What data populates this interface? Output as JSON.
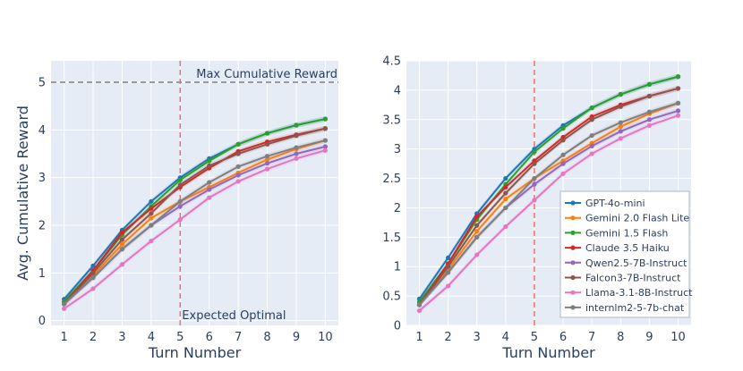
{
  "chart_data": [
    {
      "type": "line",
      "x": [
        1,
        2,
        3,
        4,
        5,
        6,
        7,
        8,
        9,
        10
      ],
      "xlabel": "Turn Number",
      "ylabel": "Avg. Cumulative Reward",
      "ylim": [
        -0.1,
        5.45
      ],
      "yticks": [
        0,
        1,
        2,
        3,
        4,
        5
      ],
      "yticklabels": [
        "0",
        "1",
        "2",
        "3",
        "4",
        "5"
      ],
      "hline": {
        "y": 5,
        "label": "Max Cumulative Reward",
        "color": "#7f7f7f"
      },
      "vline": {
        "x": 5,
        "label": "Expected Optimal",
        "color": "#ff6b6b"
      },
      "legend": "none",
      "series": [
        {
          "name": "GPT-4o-mini",
          "color": "#1f77b4",
          "values": [
            0.45,
            1.15,
            1.9,
            2.5,
            3.0,
            3.4,
            3.7,
            3.93,
            4.1,
            4.23
          ]
        },
        {
          "name": "Gemini 2.0 Flash Lite",
          "color": "#ff7f0e",
          "values": [
            0.35,
            0.95,
            1.6,
            2.15,
            2.5,
            2.8,
            3.1,
            3.38,
            3.6,
            3.78
          ]
        },
        {
          "name": "Gemini 1.5 Flash",
          "color": "#2ca02c",
          "values": [
            0.4,
            1.05,
            1.8,
            2.4,
            2.95,
            3.35,
            3.7,
            3.93,
            4.1,
            4.23
          ]
        },
        {
          "name": "Claude 3.5 Haiku",
          "color": "#d62728",
          "values": [
            0.35,
            1.05,
            1.85,
            2.35,
            2.8,
            3.2,
            3.55,
            3.75,
            3.9,
            4.03
          ]
        },
        {
          "name": "Qwen2.5-7B-Instruct",
          "color": "#9467bd",
          "values": [
            0.35,
            0.9,
            1.5,
            2.0,
            2.4,
            2.75,
            3.05,
            3.3,
            3.5,
            3.65
          ]
        },
        {
          "name": "Falcon3-7B-Instruct",
          "color": "#8c564b",
          "values": [
            0.35,
            1.0,
            1.7,
            2.25,
            2.85,
            3.25,
            3.5,
            3.7,
            3.88,
            4.03
          ]
        },
        {
          "name": "Llama-3.1-8B-Instruct",
          "color": "#e377c2",
          "values": [
            0.25,
            0.67,
            1.18,
            1.67,
            2.12,
            2.58,
            2.92,
            3.18,
            3.4,
            3.57
          ]
        },
        {
          "name": "internlm2-5-7b-chat",
          "color": "#7f7f7f",
          "values": [
            0.35,
            0.9,
            1.5,
            2.0,
            2.5,
            2.9,
            3.23,
            3.45,
            3.63,
            3.78
          ]
        }
      ]
    },
    {
      "type": "line",
      "x": [
        1,
        2,
        3,
        4,
        5,
        6,
        7,
        8,
        9,
        10
      ],
      "xlabel": "Turn Number",
      "ylabel": "",
      "ylim": [
        0,
        4.5
      ],
      "yticks": [
        0,
        0.5,
        1,
        1.5,
        2,
        2.5,
        3,
        3.5,
        4,
        4.5
      ],
      "yticklabels": [
        "0",
        "0.5",
        "1",
        "1.5",
        "2",
        "2.5",
        "3",
        "3.5",
        "4",
        "4.5"
      ],
      "vline": {
        "x": 5,
        "label": "",
        "color": "#ff6b6b"
      },
      "legend": "bottom-right",
      "series": [
        {
          "name": "GPT-4o-mini",
          "color": "#1f77b4",
          "values": [
            0.45,
            1.15,
            1.9,
            2.5,
            3.0,
            3.4,
            3.7,
            3.93,
            4.1,
            4.23
          ]
        },
        {
          "name": "Gemini 2.0 Flash Lite",
          "color": "#ff7f0e",
          "values": [
            0.35,
            0.95,
            1.6,
            2.15,
            2.5,
            2.8,
            3.1,
            3.38,
            3.6,
            3.78
          ]
        },
        {
          "name": "Gemini 1.5 Flash",
          "color": "#2ca02c",
          "values": [
            0.4,
            1.05,
            1.8,
            2.4,
            2.95,
            3.35,
            3.7,
            3.93,
            4.1,
            4.23
          ]
        },
        {
          "name": "Claude 3.5 Haiku",
          "color": "#d62728",
          "values": [
            0.35,
            1.05,
            1.85,
            2.35,
            2.8,
            3.2,
            3.55,
            3.75,
            3.9,
            4.03
          ]
        },
        {
          "name": "Qwen2.5-7B-Instruct",
          "color": "#9467bd",
          "values": [
            0.35,
            0.9,
            1.5,
            2.0,
            2.4,
            2.75,
            3.05,
            3.3,
            3.5,
            3.65
          ]
        },
        {
          "name": "Falcon3-7B-Instruct",
          "color": "#8c564b",
          "values": [
            0.35,
            1.0,
            1.7,
            2.25,
            2.75,
            3.15,
            3.5,
            3.72,
            3.9,
            4.03
          ]
        },
        {
          "name": "Llama-3.1-8B-Instruct",
          "color": "#e377c2",
          "values": [
            0.25,
            0.67,
            1.2,
            1.68,
            2.13,
            2.58,
            2.92,
            3.18,
            3.4,
            3.57
          ]
        },
        {
          "name": "internlm2-5-7b-chat",
          "color": "#7f7f7f",
          "values": [
            0.35,
            0.9,
            1.5,
            2.0,
            2.5,
            2.9,
            3.23,
            3.45,
            3.63,
            3.78
          ]
        }
      ]
    }
  ]
}
